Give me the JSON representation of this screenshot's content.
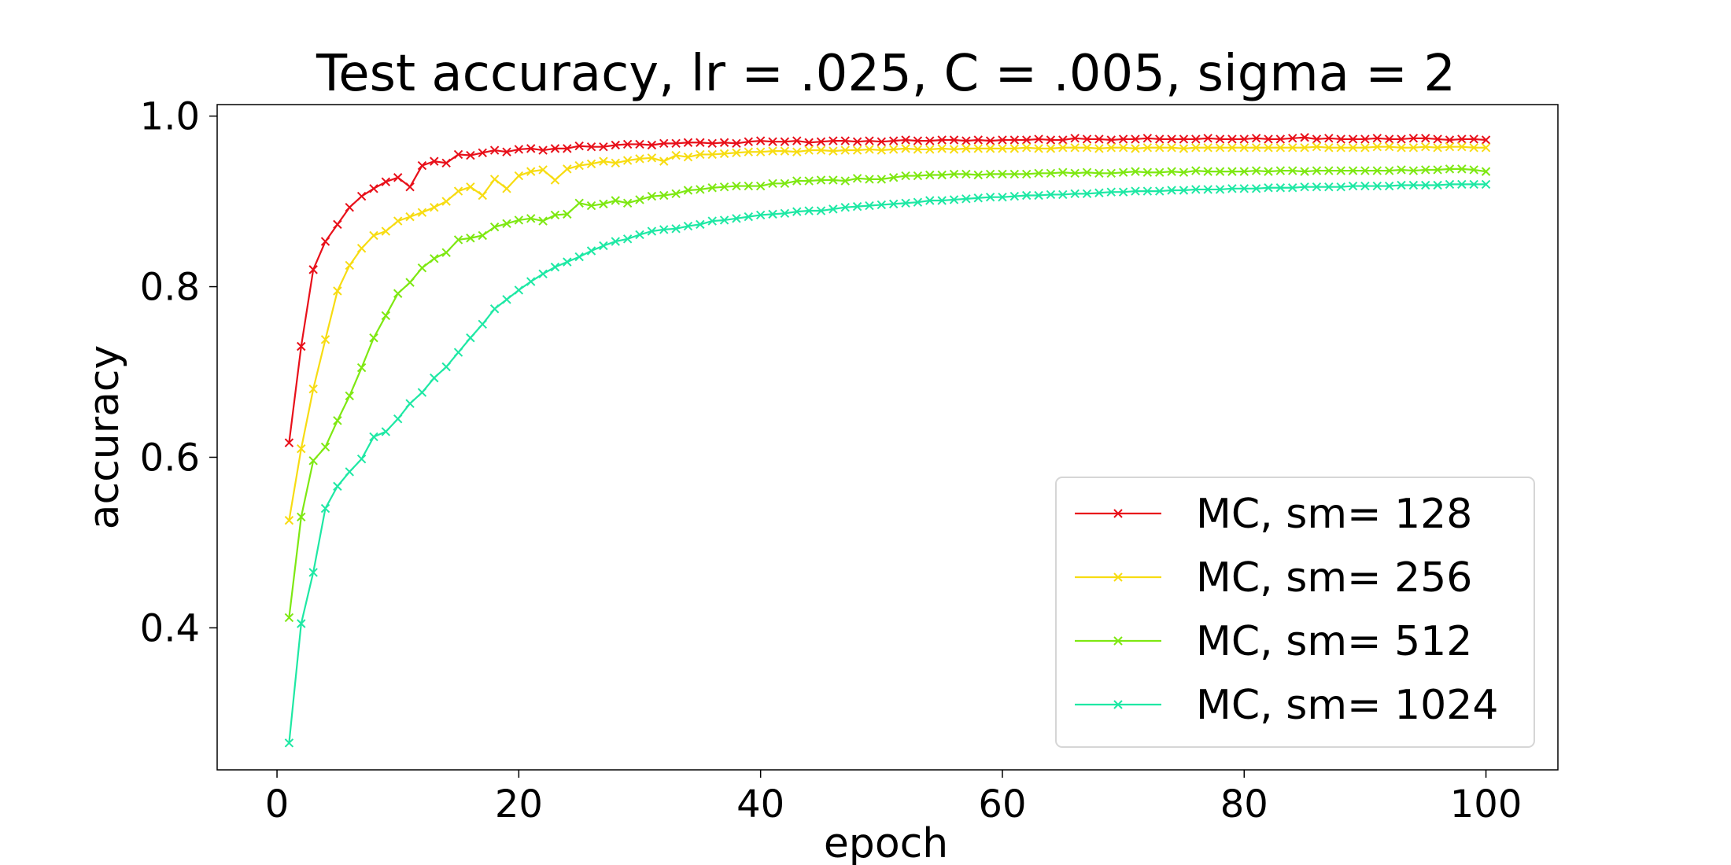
{
  "chart_data": {
    "type": "line",
    "title": "Test accuracy, lr = .025, C = .005, sigma = 2",
    "xlabel": "epoch",
    "ylabel": "accuracy",
    "xlim": [
      -4.95,
      105.95
    ],
    "ylim": [
      0.2335,
      1.0135
    ],
    "xticks": [
      0,
      20,
      40,
      60,
      80,
      100
    ],
    "yticks": [
      0.4,
      0.6,
      0.8,
      1.0
    ],
    "xtick_labels": [
      "0",
      "20",
      "40",
      "60",
      "80",
      "100"
    ],
    "ytick_labels": [
      "0.4",
      "0.6",
      "0.8",
      "1.0"
    ],
    "grid": false,
    "legend_position": "bottom-right",
    "marker": "x",
    "x": {
      "start": 1,
      "end": 100,
      "step": 1
    },
    "series": [
      {
        "name": "MC, sm= 128",
        "color": "#e8101a",
        "values": [
          0.617,
          0.73,
          0.82,
          0.853,
          0.873,
          0.893,
          0.906,
          0.915,
          0.923,
          0.928,
          0.917,
          0.942,
          0.947,
          0.945,
          0.955,
          0.954,
          0.957,
          0.96,
          0.958,
          0.961,
          0.962,
          0.96,
          0.962,
          0.962,
          0.965,
          0.964,
          0.964,
          0.966,
          0.967,
          0.967,
          0.966,
          0.968,
          0.968,
          0.969,
          0.969,
          0.968,
          0.969,
          0.968,
          0.97,
          0.971,
          0.97,
          0.97,
          0.971,
          0.969,
          0.97,
          0.971,
          0.971,
          0.97,
          0.971,
          0.97,
          0.971,
          0.972,
          0.971,
          0.971,
          0.972,
          0.972,
          0.971,
          0.972,
          0.971,
          0.972,
          0.972,
          0.972,
          0.973,
          0.972,
          0.972,
          0.974,
          0.973,
          0.973,
          0.972,
          0.973,
          0.973,
          0.974,
          0.973,
          0.973,
          0.973,
          0.973,
          0.974,
          0.973,
          0.973,
          0.973,
          0.974,
          0.973,
          0.973,
          0.974,
          0.975,
          0.973,
          0.974,
          0.973,
          0.973,
          0.973,
          0.974,
          0.973,
          0.973,
          0.974,
          0.974,
          0.973,
          0.972,
          0.973,
          0.973,
          0.972
        ]
      },
      {
        "name": "MC, sm= 256",
        "color": "#f7dc12",
        "values": [
          0.526,
          0.61,
          0.68,
          0.738,
          0.795,
          0.825,
          0.845,
          0.86,
          0.865,
          0.877,
          0.882,
          0.887,
          0.893,
          0.9,
          0.912,
          0.917,
          0.907,
          0.926,
          0.915,
          0.93,
          0.935,
          0.937,
          0.925,
          0.938,
          0.942,
          0.944,
          0.947,
          0.945,
          0.948,
          0.95,
          0.951,
          0.947,
          0.954,
          0.952,
          0.955,
          0.955,
          0.956,
          0.957,
          0.958,
          0.958,
          0.959,
          0.959,
          0.958,
          0.96,
          0.96,
          0.959,
          0.96,
          0.96,
          0.961,
          0.96,
          0.961,
          0.962,
          0.961,
          0.961,
          0.962,
          0.961,
          0.962,
          0.962,
          0.962,
          0.962,
          0.962,
          0.963,
          0.962,
          0.962,
          0.963,
          0.963,
          0.963,
          0.962,
          0.963,
          0.963,
          0.962,
          0.963,
          0.963,
          0.963,
          0.962,
          0.963,
          0.963,
          0.963,
          0.963,
          0.963,
          0.963,
          0.963,
          0.963,
          0.963,
          0.963,
          0.964,
          0.963,
          0.963,
          0.963,
          0.963,
          0.964,
          0.964,
          0.963,
          0.963,
          0.964,
          0.963,
          0.964,
          0.964,
          0.963,
          0.963
        ]
      },
      {
        "name": "MC, sm= 512",
        "color": "#7ee812",
        "values": [
          0.412,
          0.53,
          0.596,
          0.612,
          0.643,
          0.672,
          0.705,
          0.74,
          0.766,
          0.792,
          0.805,
          0.822,
          0.833,
          0.84,
          0.855,
          0.857,
          0.86,
          0.87,
          0.874,
          0.878,
          0.88,
          0.877,
          0.884,
          0.885,
          0.898,
          0.895,
          0.897,
          0.901,
          0.898,
          0.902,
          0.906,
          0.907,
          0.909,
          0.913,
          0.914,
          0.916,
          0.917,
          0.918,
          0.918,
          0.918,
          0.921,
          0.921,
          0.924,
          0.924,
          0.925,
          0.925,
          0.924,
          0.927,
          0.926,
          0.926,
          0.928,
          0.93,
          0.93,
          0.931,
          0.931,
          0.932,
          0.932,
          0.931,
          0.932,
          0.932,
          0.932,
          0.932,
          0.933,
          0.933,
          0.934,
          0.933,
          0.934,
          0.933,
          0.933,
          0.934,
          0.935,
          0.934,
          0.934,
          0.935,
          0.934,
          0.936,
          0.935,
          0.935,
          0.935,
          0.935,
          0.936,
          0.935,
          0.936,
          0.936,
          0.935,
          0.936,
          0.936,
          0.936,
          0.936,
          0.936,
          0.936,
          0.936,
          0.937,
          0.936,
          0.937,
          0.937,
          0.938,
          0.938,
          0.937,
          0.935
        ]
      },
      {
        "name": "MC, sm= 1024",
        "color": "#1ee8a4",
        "values": [
          0.265,
          0.405,
          0.465,
          0.54,
          0.566,
          0.583,
          0.598,
          0.624,
          0.63,
          0.645,
          0.663,
          0.676,
          0.693,
          0.706,
          0.723,
          0.74,
          0.756,
          0.774,
          0.785,
          0.796,
          0.806,
          0.815,
          0.823,
          0.829,
          0.835,
          0.842,
          0.848,
          0.853,
          0.856,
          0.861,
          0.865,
          0.867,
          0.868,
          0.871,
          0.873,
          0.877,
          0.878,
          0.88,
          0.882,
          0.884,
          0.885,
          0.886,
          0.888,
          0.889,
          0.889,
          0.891,
          0.893,
          0.894,
          0.895,
          0.896,
          0.897,
          0.898,
          0.899,
          0.901,
          0.901,
          0.902,
          0.903,
          0.904,
          0.905,
          0.905,
          0.906,
          0.907,
          0.907,
          0.908,
          0.908,
          0.909,
          0.909,
          0.91,
          0.911,
          0.911,
          0.912,
          0.912,
          0.912,
          0.913,
          0.913,
          0.914,
          0.914,
          0.914,
          0.915,
          0.915,
          0.915,
          0.916,
          0.916,
          0.916,
          0.917,
          0.917,
          0.917,
          0.917,
          0.918,
          0.918,
          0.918,
          0.918,
          0.919,
          0.919,
          0.919,
          0.919,
          0.92,
          0.92,
          0.92,
          0.92
        ]
      }
    ]
  }
}
